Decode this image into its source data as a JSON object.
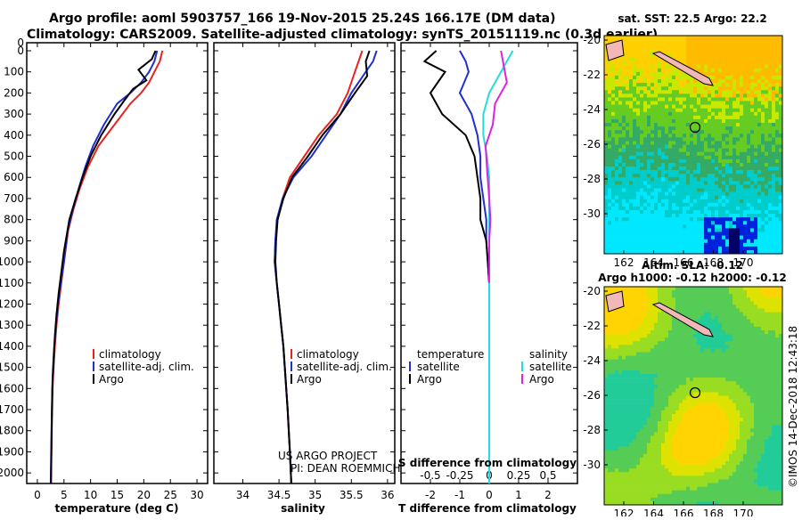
{
  "header": {
    "line1": "Argo profile: aoml 5903757_166 19-Nov-2015 25.24S 166.17E (DM data)",
    "line2": "Climatology: CARS2009. Satellite-adjusted climatology: synTS_20151119.nc (0.3d earlier)"
  },
  "colors": {
    "climatology": "#e8231f",
    "satellite": "#1f2fd0",
    "argo": "#000000",
    "sal_satellite": "#22dddd",
    "sal_argo": "#dd22dd"
  },
  "depth_axis": {
    "ylim": [
      0,
      2050
    ],
    "tick_labels": [
      "0",
      "100",
      "200",
      "300",
      "400",
      "500",
      "600",
      "700",
      "800",
      "900",
      "1000",
      "1100",
      "1200",
      "1300",
      "1400",
      "1500",
      "1600",
      "1700",
      "1800",
      "1900",
      "2000"
    ],
    "extra_top_label": "0"
  },
  "panel_temp": {
    "xlabel": "temperature (deg C)",
    "xlim": [
      -2,
      32
    ],
    "xticks": [
      "0",
      "5",
      "10",
      "15",
      "20",
      "25",
      "30"
    ],
    "legend": [
      "climatology",
      "satellite-adj. clim.",
      "Argo"
    ]
  },
  "panel_sal": {
    "xlabel": "salinity",
    "xlim": [
      33.6,
      36.1
    ],
    "xticks": [
      "34",
      "34.5",
      "35",
      "35.5",
      "36"
    ],
    "legend": [
      "climatology",
      "satellite-adj. clim.",
      "Argo"
    ],
    "credit_line1": "US ARGO PROJECT",
    "credit_line2": "PI: DEAN ROEMMICH"
  },
  "panel_diff": {
    "xlabel": "T difference from climatology",
    "xlim": [
      -3,
      3
    ],
    "xticks": [
      "-2",
      "-1",
      "0",
      "1",
      "2"
    ],
    "s_title": "S difference from climatology",
    "s_xticks": [
      "-0.5",
      "-0.25",
      "0",
      "0.25",
      "0.5"
    ],
    "legend_t_title": "temperature",
    "legend_t": [
      "satellite",
      "Argo"
    ],
    "legend_s_title": "salinity",
    "legend_s": [
      "satellite",
      "Argo"
    ]
  },
  "map_sst": {
    "title": "sat. SST: 22.5 Argo: 22.2",
    "xticks": [
      "162",
      "164",
      "166",
      "168",
      "170"
    ],
    "yticks": [
      "-20",
      "-22",
      "-24",
      "-26",
      "-28",
      "-30"
    ]
  },
  "map_sla": {
    "title1": "Altim. SLA: -0.12",
    "title2": "Argo h1000: -0.12 h2000: -0.12",
    "xticks": [
      "162",
      "164",
      "166",
      "168",
      "170"
    ],
    "yticks": [
      "-20",
      "-22",
      "-24",
      "-26",
      "-28",
      "-30"
    ]
  },
  "imos_stamp": "©IMOS 14-Dec-2018 12:43:18",
  "chart_data": [
    {
      "type": "line",
      "title": "temperature (deg C)",
      "xlabel": "temperature (deg C)",
      "ylabel": "depth",
      "xlim": [
        -2,
        32
      ],
      "ylim": [
        0,
        2050
      ],
      "series": [
        {
          "name": "climatology",
          "x": [
            23.5,
            23,
            22,
            21,
            19.5,
            17.5,
            14.5,
            11.5,
            9.5,
            8,
            6.8,
            5.8,
            5,
            4.5,
            4,
            3.6,
            3.3,
            3.05,
            2.85,
            2.7,
            2.55
          ],
          "y": [
            0,
            50,
            100,
            150,
            200,
            250,
            350,
            450,
            550,
            650,
            750,
            850,
            1000,
            1100,
            1200,
            1300,
            1400,
            1500,
            1600,
            1800,
            2050
          ]
        },
        {
          "name": "satellite-adj. clim.",
          "x": [
            22.5,
            22,
            21,
            19.5,
            17.5,
            15,
            12.5,
            10.5,
            9,
            7.8,
            6.7,
            5.7,
            5,
            4.4,
            3.9,
            3.5,
            3.2,
            3,
            2.8,
            2.65,
            2.5
          ],
          "y": [
            0,
            50,
            100,
            150,
            200,
            250,
            350,
            450,
            550,
            650,
            750,
            850,
            1000,
            1100,
            1200,
            1300,
            1400,
            1500,
            1600,
            1800,
            2050
          ]
        },
        {
          "name": "Argo",
          "x": [
            22.2,
            21.5,
            19,
            20.5,
            18,
            16.5,
            14.5,
            12,
            10,
            8.5,
            7.2,
            6,
            5,
            4.5,
            4,
            3.6,
            3.3,
            3.05,
            2.85,
            2.7,
            2.55
          ],
          "y": [
            0,
            40,
            90,
            140,
            180,
            230,
            300,
            400,
            500,
            600,
            700,
            800,
            950,
            1050,
            1150,
            1250,
            1350,
            1450,
            1550,
            1750,
            2050
          ]
        }
      ]
    },
    {
      "type": "line",
      "title": "salinity",
      "xlabel": "salinity",
      "ylabel": "depth",
      "xlim": [
        33.6,
        36.1
      ],
      "series": [
        {
          "name": "climatology",
          "x": [
            35.65,
            35.6,
            35.55,
            35.45,
            35.3,
            35.05,
            34.85,
            34.65,
            34.55,
            34.48,
            34.45,
            34.44,
            34.47,
            34.5,
            34.53,
            34.56,
            34.58,
            34.6,
            34.62,
            34.65,
            34.67
          ],
          "y": [
            0,
            50,
            100,
            200,
            300,
            400,
            500,
            600,
            700,
            800,
            900,
            1000,
            1100,
            1200,
            1300,
            1400,
            1500,
            1600,
            1700,
            1900,
            2050
          ]
        },
        {
          "name": "satellite-adj. clim.",
          "x": [
            35.85,
            35.8,
            35.7,
            35.5,
            35.35,
            35.15,
            34.95,
            34.7,
            34.55,
            34.47,
            34.45,
            34.44,
            34.47,
            34.5,
            34.53,
            34.56,
            34.58,
            34.6,
            34.62,
            34.65,
            34.67
          ],
          "y": [
            0,
            50,
            100,
            200,
            300,
            400,
            500,
            600,
            700,
            800,
            900,
            1000,
            1100,
            1200,
            1300,
            1400,
            1500,
            1600,
            1700,
            1900,
            2050
          ]
        },
        {
          "name": "Argo",
          "x": [
            35.75,
            35.7,
            35.72,
            35.55,
            35.35,
            35.1,
            34.9,
            34.68,
            34.56,
            34.48,
            34.46,
            34.45,
            34.47,
            34.5,
            34.53,
            34.56,
            34.58,
            34.6,
            34.62,
            34.65,
            34.67
          ],
          "y": [
            0,
            50,
            120,
            200,
            300,
            400,
            500,
            600,
            700,
            800,
            900,
            1000,
            1100,
            1200,
            1300,
            1400,
            1500,
            1600,
            1700,
            1900,
            2050
          ]
        }
      ]
    },
    {
      "type": "line",
      "title": "T difference from climatology",
      "xlabel": "T difference from climatology",
      "xlim": [
        -3,
        3
      ],
      "s_xlim": [
        -0.75,
        0.75
      ],
      "series": [
        {
          "name": "temperature satellite",
          "x": [
            -1,
            -0.8,
            -0.7,
            -1,
            -0.6,
            -0.4,
            -0.3,
            -0.3,
            -0.2,
            -0.1,
            -0.1,
            -0.05,
            0,
            0,
            0,
            0,
            0,
            0,
            0,
            0
          ],
          "y": [
            0,
            50,
            100,
            200,
            300,
            400,
            500,
            600,
            700,
            800,
            900,
            1000,
            1100,
            1200,
            1300,
            1400,
            1500,
            1700,
            1900,
            2050
          ]
        },
        {
          "name": "temperature Argo",
          "x": [
            -1.8,
            -2.2,
            -1.5,
            -2,
            -1.6,
            -0.8,
            -0.5,
            -0.4,
            -0.3,
            -0.3,
            -0.1,
            -0.05,
            0,
            0,
            0,
            0,
            0,
            0,
            0,
            0
          ],
          "y": [
            0,
            50,
            100,
            200,
            300,
            400,
            500,
            600,
            700,
            800,
            900,
            1000,
            1100,
            1200,
            1300,
            1400,
            1500,
            1700,
            1900,
            2050
          ]
        },
        {
          "name": "salinity satellite",
          "x": [
            0.2,
            0.1,
            0,
            -0.05,
            -0.05,
            -0.02,
            0,
            0,
            0,
            0,
            0,
            0,
            0,
            0,
            0
          ],
          "y": [
            0,
            100,
            200,
            300,
            400,
            500,
            600,
            700,
            800,
            1000,
            1200,
            1400,
            1600,
            1800,
            2050
          ]
        },
        {
          "name": "salinity Argo",
          "x": [
            0.1,
            0.15,
            0.05,
            0.03,
            -0.03,
            -0.02,
            0,
            0.01,
            0,
            0,
            0
          ],
          "y": [
            0,
            150,
            250,
            350,
            450,
            550,
            700,
            800,
            900,
            1000,
            1100
          ]
        }
      ]
    }
  ]
}
